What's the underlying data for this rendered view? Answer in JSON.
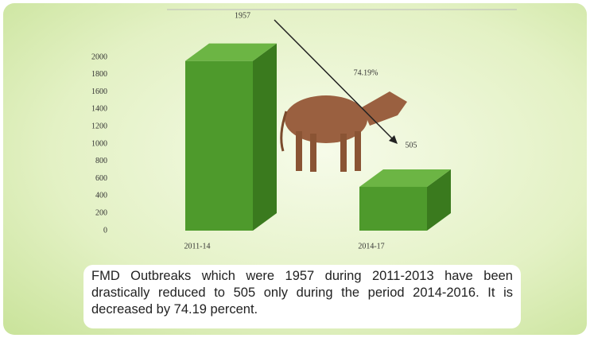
{
  "chart_data": {
    "type": "bar",
    "categories": [
      "2011-14",
      "2014-17"
    ],
    "values": [
      1957,
      505
    ],
    "color": "#4e9a2c",
    "ylim": [
      0,
      2000
    ],
    "yticks": [
      0,
      200,
      400,
      600,
      800,
      1000,
      1200,
      1400,
      1600,
      1800,
      2000
    ],
    "annotation": "74.19%"
  },
  "caption": "FMD Outbreaks which were 1957 during 2011-2013 have been drastically reduced to 505 only during the period 2014-2016. It is decreased by 74.19  percent."
}
